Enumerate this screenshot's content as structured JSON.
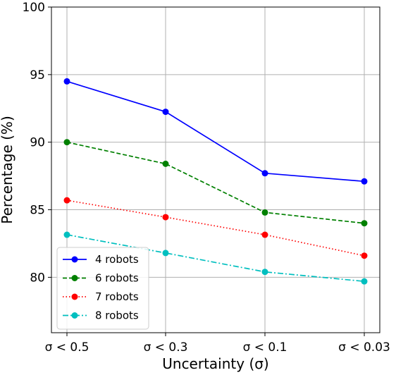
{
  "chart_data": {
    "type": "line",
    "categories": [
      "σ < 0.5",
      "σ < 0.3",
      "σ < 0.1",
      "σ < 0.03"
    ],
    "xlabel": "Uncertainty (σ)",
    "ylabel": "Percentage (%)",
    "ylim": [
      75.9,
      100
    ],
    "yticks": [
      80,
      85,
      90,
      95,
      100
    ],
    "grid": true,
    "legend_position": "lower-left",
    "series": [
      {
        "name": "4 robots",
        "values": [
          94.5,
          92.25,
          87.7,
          87.1
        ],
        "color": "#0000ff",
        "linestyle": "solid"
      },
      {
        "name": "6 robots",
        "values": [
          90.0,
          88.4,
          84.8,
          84.0
        ],
        "color": "#008000",
        "linestyle": "dashed"
      },
      {
        "name": "7 robots",
        "values": [
          85.7,
          84.45,
          83.15,
          81.6
        ],
        "color": "#ff0000",
        "linestyle": "dotted"
      },
      {
        "name": "8 robots",
        "values": [
          83.15,
          81.8,
          80.4,
          79.7
        ],
        "color": "#00bfbf",
        "linestyle": "dashdot"
      }
    ]
  }
}
